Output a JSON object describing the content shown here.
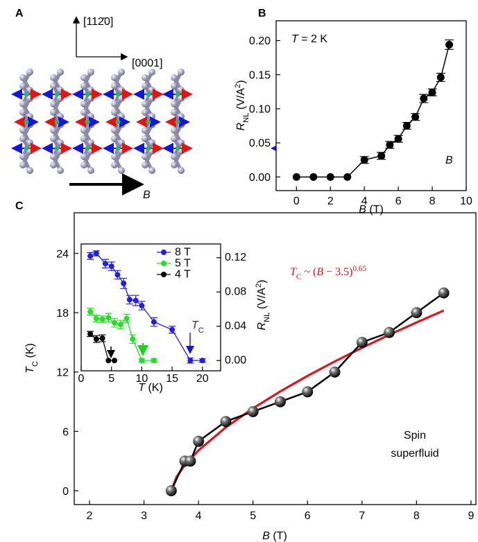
{
  "panel_a": {
    "label": "A",
    "axis_up": "[112̄0]",
    "axis_right": "[0001]",
    "field": "B"
  },
  "chart_data": [
    {
      "type": "line",
      "label": "B",
      "annotation": [
        "T",
        " = 2 K"
      ],
      "field_label": "B",
      "xlabel": [
        "B",
        " (T)"
      ],
      "ylabel": [
        "R",
        "NL",
        " (V/A",
        "2",
        ")"
      ],
      "xlim": [
        -1.2,
        10
      ],
      "ylim": [
        -0.02,
        0.229
      ],
      "xticks": [
        0,
        2,
        4,
        6,
        8,
        10
      ],
      "yticks": [
        {
          "value": 0,
          "label": "0.00"
        },
        {
          "value": 0.05,
          "label": "0.05"
        },
        {
          "value": 0.1,
          "label": "0.10"
        },
        {
          "value": 0.15,
          "label": "0.15"
        },
        {
          "value": 0.2,
          "label": "0.20"
        }
      ],
      "series": [
        {
          "color": "#000000",
          "marker": "circle",
          "x": [
            0,
            1,
            2,
            3,
            4,
            5,
            5.5,
            6,
            6.5,
            7,
            7.5,
            8,
            8.5,
            9
          ],
          "values": [
            0,
            0,
            0,
            0,
            0.025,
            0.031,
            0.047,
            0.056,
            0.075,
            0.088,
            0.115,
            0.124,
            0.146,
            0.194
          ],
          "errors": [
            0,
            0,
            0,
            0,
            0.005,
            0.005,
            0.005,
            0.005,
            0.005,
            0.005,
            0.006,
            0.005,
            0.006,
            0.007
          ]
        }
      ]
    },
    {
      "type": "line",
      "label": "C",
      "annotation": [
        "T",
        "C",
        " ~ (",
        "B",
        " − 3.5)",
        "0.65"
      ],
      "annotation_color": "#e0141e",
      "note": [
        "Spin",
        "superfluid"
      ],
      "xlabel": [
        "B",
        " (T)"
      ],
      "ylabel": [
        "T",
        "C",
        " (K)"
      ],
      "xlim": [
        1.72,
        9.09
      ],
      "ylim": [
        -1.4,
        28.1
      ],
      "xticks": [
        2,
        3,
        4,
        5,
        6,
        7,
        8,
        9
      ],
      "yticks": [
        0,
        6,
        12,
        18,
        24
      ],
      "series": [
        {
          "color": "#e0141e",
          "x": [
            3.5,
            3.6,
            3.75,
            4,
            4.5,
            5,
            5.5,
            6,
            6.5,
            7,
            7.5,
            8,
            8.5
          ],
          "values": [
            0,
            1.43,
            2.6,
            4.08,
            6.4,
            8.33,
            10.04,
            11.61,
            13.07,
            14.45,
            15.76,
            17.01,
            18.22
          ]
        },
        {
          "color": "#000000",
          "marker": "sphere",
          "x": [
            3.5,
            3.75,
            3.85,
            4,
            4.5,
            5,
            5.5,
            6,
            6.5,
            7,
            7.5,
            8,
            8.5
          ],
          "values": [
            0,
            3,
            3,
            5,
            7,
            8,
            9,
            10,
            12,
            15,
            16,
            18,
            20
          ]
        }
      ]
    },
    {
      "type": "line",
      "inset": true,
      "annotation": [
        "T",
        "C"
      ],
      "xlabel": [
        "T",
        " (K)"
      ],
      "ylabel": [
        "R",
        "NL",
        " (V/A",
        "2",
        ")"
      ],
      "xlim": [
        0,
        23
      ],
      "ylim": [
        -0.012,
        0.136
      ],
      "xticks": [
        0,
        5,
        10,
        15,
        20
      ],
      "yticks": [
        {
          "value": 0,
          "label": "0.00"
        },
        {
          "value": 0.04,
          "label": "0.04"
        },
        {
          "value": 0.08,
          "label": "0.08"
        },
        {
          "value": 0.12,
          "label": "0.12"
        }
      ],
      "legend": "top-right",
      "series": [
        {
          "name": "8 T",
          "color": "#2020e0",
          "marker": "circle",
          "x": [
            1.5,
            2.5,
            4,
            5,
            6,
            7,
            8,
            9,
            10,
            12,
            15,
            18,
            20
          ],
          "values": [
            0.122,
            0.125,
            0.113,
            0.11,
            0.1,
            0.09,
            0.071,
            0.07,
            0.064,
            0.045,
            0.036,
            0,
            0
          ],
          "errors": [
            0.004,
            0.003,
            0.005,
            0.005,
            0.005,
            0.006,
            0.005,
            0.006,
            0.005,
            0.005,
            0.004,
            0.003,
            0.002
          ]
        },
        {
          "name": "5 T",
          "color": "#22e022",
          "marker": "circle",
          "x": [
            1.5,
            2.5,
            3.5,
            4.5,
            5.5,
            6.5,
            7.5,
            8.5,
            10,
            12
          ],
          "values": [
            0.057,
            0.049,
            0.048,
            0.05,
            0.044,
            0.042,
            0.049,
            0.025,
            0,
            0
          ],
          "errors": [
            0.004,
            0.004,
            0.004,
            0.005,
            0.005,
            0.005,
            0.005,
            0.005,
            0.002,
            0.002
          ]
        },
        {
          "name": "4 T",
          "color": "#000000",
          "marker": "circle",
          "x": [
            1.5,
            2.5,
            3.5,
            4.5,
            5.5
          ],
          "values": [
            0.031,
            0.025,
            0.026,
            0,
            0
          ],
          "errors": [
            0.003,
            0.004,
            0.004,
            0,
            0
          ]
        }
      ]
    }
  ]
}
